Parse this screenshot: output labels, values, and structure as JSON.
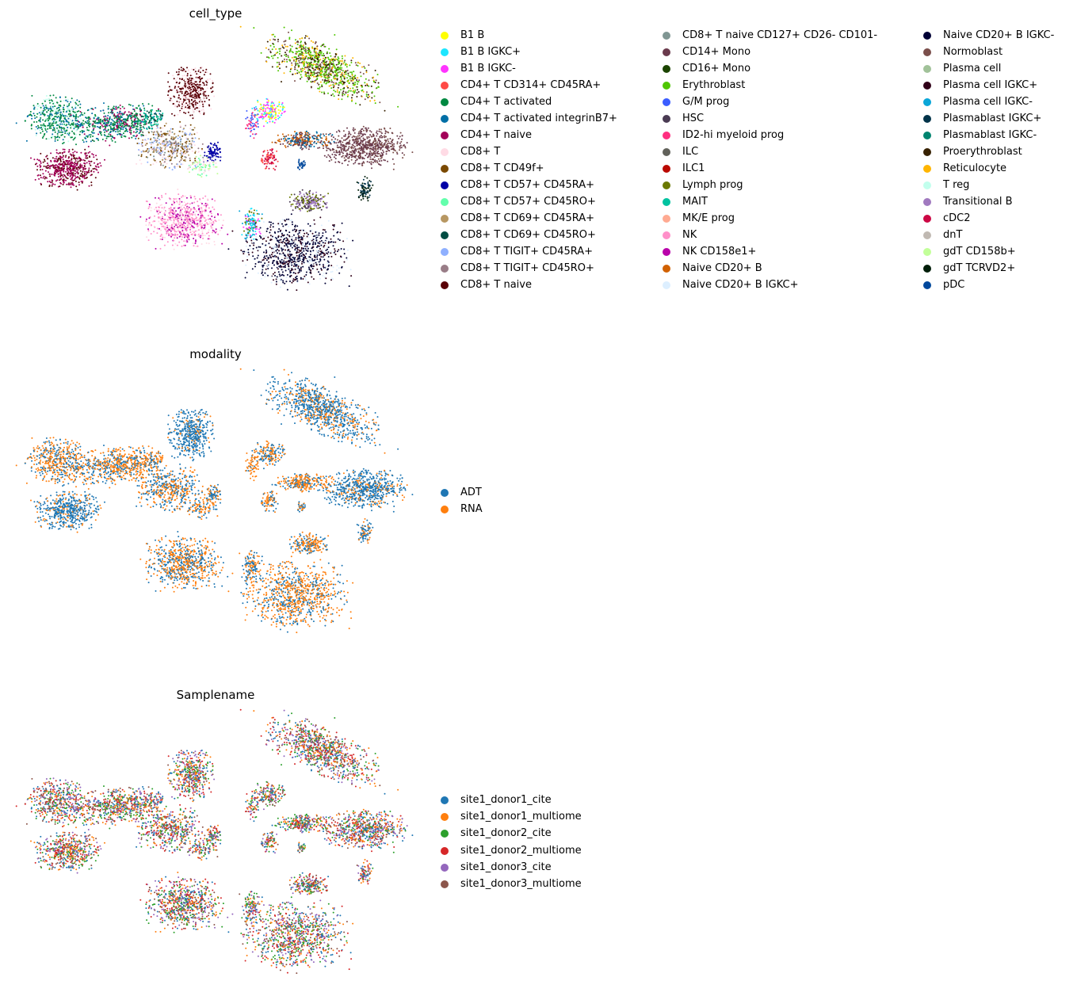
{
  "chart_data": [
    {
      "type": "scatter",
      "title": "cell_type",
      "legend_placement": "right",
      "grid": false,
      "categories": [
        "B1 B",
        "B1 B IGKC+",
        "B1 B IGKC-",
        "CD4+ T CD314+ CD45RA+",
        "CD4+ T activated",
        "CD4+ T activated integrinB7+",
        "CD4+ T naive",
        "CD8+ T",
        "CD8+ T CD49f+",
        "CD8+ T CD57+ CD45RA+",
        "CD8+ T CD57+ CD45RO+",
        "CD8+ T CD69+ CD45RA+",
        "CD8+ T CD69+ CD45RO+",
        "CD8+ T TIGIT+ CD45RA+",
        "CD8+ T TIGIT+ CD45RO+",
        "CD8+ T naive",
        "CD8+ T naive CD127+ CD26- CD101-",
        "CD14+ Mono",
        "CD16+ Mono",
        "Erythroblast",
        "G/M prog",
        "HSC",
        "ID2-hi myeloid prog",
        "ILC",
        "ILC1",
        "Lymph prog",
        "MAIT",
        "MK/E prog",
        "NK",
        "NK CD158e1+",
        "Naive CD20+ B",
        "Naive CD20+ B IGKC+",
        "Naive CD20+ B IGKC-",
        "Normoblast",
        "Plasma cell",
        "Plasma cell IGKC+",
        "Plasma cell IGKC-",
        "Plasmablast IGKC+",
        "Plasmablast IGKC-",
        "Proerythroblast",
        "Reticulocyte",
        "T reg",
        "Transitional B",
        "cDC2",
        "dnT",
        "gdT CD158b+",
        "gdT TCRVD2+",
        "pDC"
      ],
      "colors": [
        "#FFFF00",
        "#1CE6FF",
        "#FF34FF",
        "#FF4A46",
        "#008941",
        "#006FA6",
        "#A30059",
        "#FFDBE5",
        "#7A4900",
        "#0000A6",
        "#63FFAC",
        "#B79762",
        "#004D43",
        "#8FB0FF",
        "#997D87",
        "#5A0007",
        "#809693",
        "#6A3A4C",
        "#1B4400",
        "#4FC601",
        "#3B5DFF",
        "#4A3B53",
        "#FF2F80",
        "#61615A",
        "#BA0900",
        "#6B7900",
        "#00C2A0",
        "#FFAA92",
        "#FF90C9",
        "#B903AA",
        "#D16100",
        "#DDEFFF",
        "#000035",
        "#7B4F4B",
        "#A1C299",
        "#300018",
        "#0AA6D8",
        "#013349",
        "#00846F",
        "#372101",
        "#FFB500",
        "#C2FFED",
        "#A079BF",
        "#CC0744",
        "#C0B9B2",
        "#C2FF99",
        "#001E09",
        "#00489C"
      ]
    },
    {
      "type": "scatter",
      "title": "modality",
      "legend_placement": "right",
      "grid": false,
      "categories": [
        "ADT",
        "RNA"
      ],
      "colors": [
        "#1f77b4",
        "#ff7f0e"
      ]
    },
    {
      "type": "scatter",
      "title": "Samplename",
      "legend_placement": "right",
      "grid": false,
      "categories": [
        "site1_donor1_cite",
        "site1_donor1_multiome",
        "site1_donor2_cite",
        "site1_donor2_multiome",
        "site1_donor3_cite",
        "site1_donor3_multiome"
      ],
      "colors": [
        "#1f77b4",
        "#ff7f0e",
        "#2ca02c",
        "#d62728",
        "#9467bd",
        "#8c564b"
      ]
    }
  ]
}
